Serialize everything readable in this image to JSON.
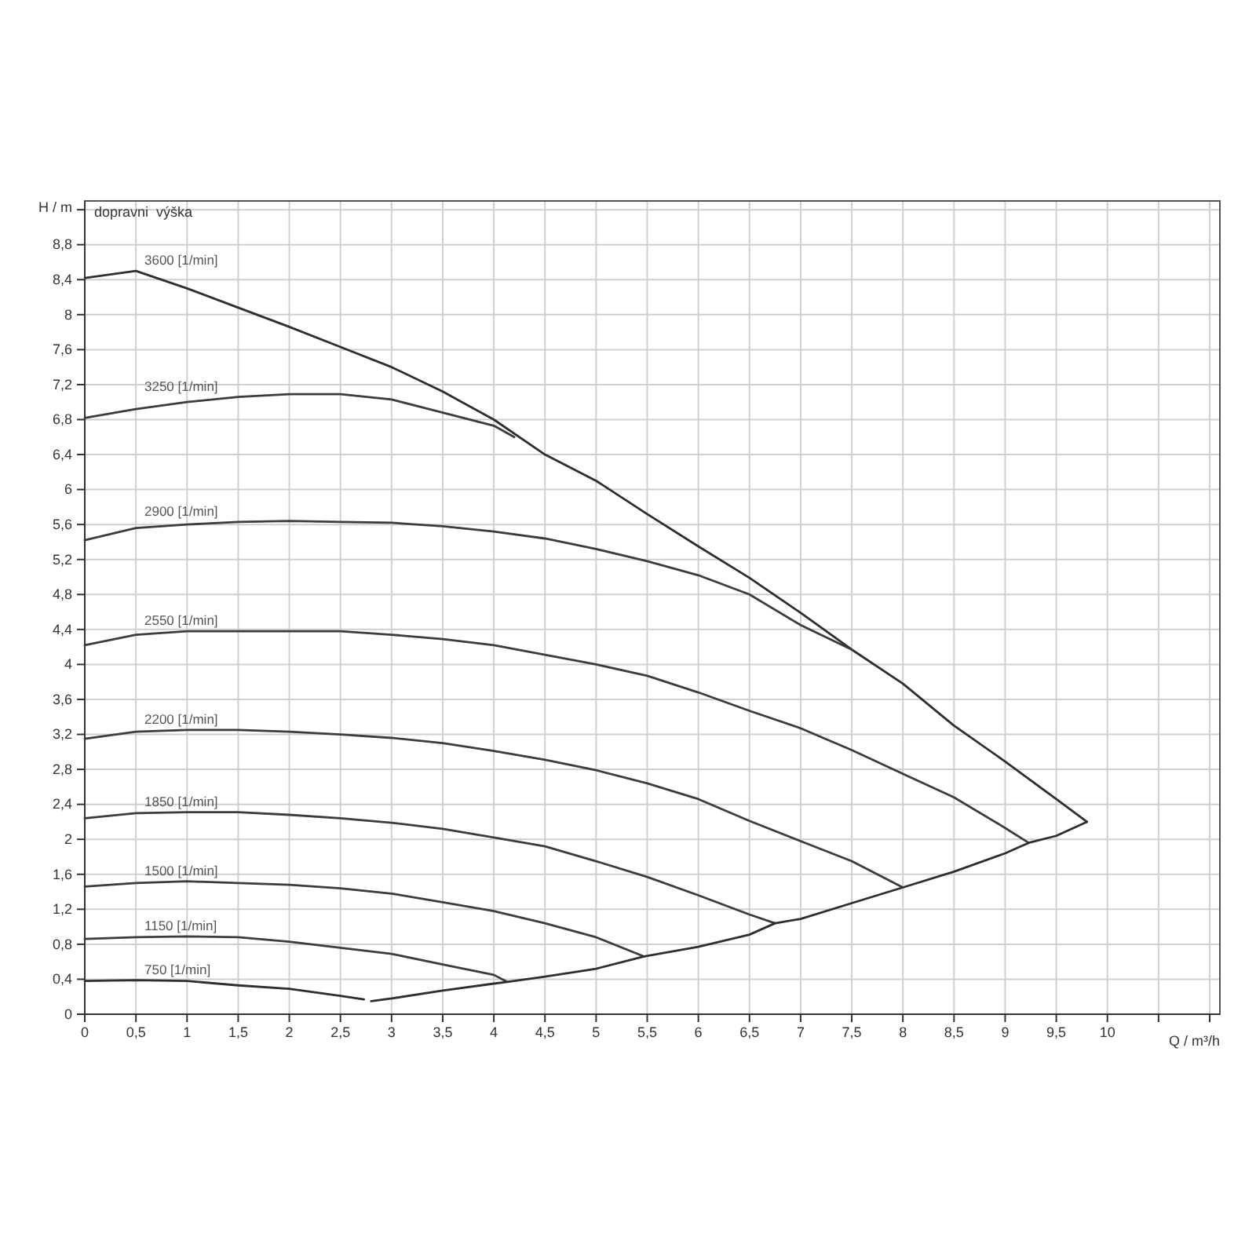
{
  "chart_data": {
    "type": "line",
    "xlabel": "Q / m³/h",
    "ylabel": "H / m",
    "annotations": [
      "dopravni  výška"
    ],
    "xlim": [
      0,
      11.1
    ],
    "ylim": [
      0,
      9.3
    ],
    "grid": true,
    "legend": false,
    "marker": "none",
    "line_style": "solid",
    "xticks": [
      0,
      {
        "value": 0.5,
        "label": "0,5"
      },
      1,
      {
        "value": 1.5,
        "label": "1,5"
      },
      2,
      {
        "value": 2.5,
        "label": "2,5"
      },
      3,
      {
        "value": 3.5,
        "label": "3,5"
      },
      4,
      {
        "value": 4.5,
        "label": "4,5"
      },
      5,
      {
        "value": 5.5,
        "label": "5,5"
      },
      6,
      {
        "value": 6.5,
        "label": "6,5"
      },
      7,
      {
        "value": 7.5,
        "label": "7,5"
      },
      8,
      {
        "value": 8.5,
        "label": "8,5"
      },
      9,
      {
        "value": 9.5,
        "label": "9,5"
      },
      10,
      {
        "value": 10.5,
        "label": null
      },
      {
        "value": 11,
        "label": null
      }
    ],
    "yticks": [
      0,
      {
        "value": 0.4,
        "label": "0,4"
      },
      {
        "value": 0.8,
        "label": "0,8"
      },
      {
        "value": 1.2,
        "label": "1,2"
      },
      {
        "value": 1.6,
        "label": "1,6"
      },
      2,
      {
        "value": 2.4,
        "label": "2,4"
      },
      {
        "value": 2.8,
        "label": "2,8"
      },
      {
        "value": 3.2,
        "label": "3,2"
      },
      {
        "value": 3.6,
        "label": "3,6"
      },
      4,
      {
        "value": 4.4,
        "label": "4,4"
      },
      {
        "value": 4.8,
        "label": "4,8"
      },
      {
        "value": 5.2,
        "label": "5,2"
      },
      {
        "value": 5.6,
        "label": "5,6"
      },
      6,
      {
        "value": 6.4,
        "label": "6,4"
      },
      {
        "value": 6.8,
        "label": "6,8"
      },
      {
        "value": 7.2,
        "label": "7,2"
      },
      {
        "value": 7.6,
        "label": "7,6"
      },
      8,
      {
        "value": 8.4,
        "label": "8,4"
      },
      {
        "value": 8.8,
        "label": "8,8"
      },
      {
        "value": 9.2,
        "label": null
      }
    ],
    "series": [
      {
        "name": "3600 [1/min]",
        "color": "#2e2e2e",
        "x": [
          0,
          0.5,
          1,
          1.5,
          2,
          2.5,
          3,
          3.5,
          4,
          4.5,
          5,
          5.5,
          6,
          6.5,
          7,
          7.5,
          8,
          8.5,
          9,
          9.5,
          9.8
        ],
        "values": [
          8.42,
          8.5,
          8.3,
          8.08,
          7.86,
          7.63,
          7.4,
          7.12,
          6.8,
          6.4,
          6.1,
          5.72,
          5.35,
          4.99,
          4.59,
          4.17,
          3.78,
          3.3,
          2.89,
          2.46,
          2.2
        ]
      },
      {
        "name": "3250 [1/min]",
        "color": "#3c3c3c",
        "x": [
          0,
          0.5,
          1,
          1.5,
          2,
          2.5,
          3,
          3.5,
          4,
          4.2
        ],
        "values": [
          6.82,
          6.92,
          7.0,
          7.06,
          7.09,
          7.09,
          7.03,
          6.88,
          6.73,
          6.6
        ]
      },
      {
        "name": "2900 [1/min]",
        "color": "#3c3c3c",
        "x": [
          0,
          0.5,
          1,
          1.5,
          2,
          2.5,
          3,
          3.5,
          4,
          4.5,
          5,
          5.5,
          6,
          6.5,
          7,
          7.5
        ],
        "values": [
          5.42,
          5.56,
          5.6,
          5.63,
          5.64,
          5.63,
          5.62,
          5.58,
          5.52,
          5.44,
          5.32,
          5.18,
          5.02,
          4.8,
          4.45,
          4.17
        ]
      },
      {
        "name": "2550 [1/min]",
        "color": "#3c3c3c",
        "x": [
          0,
          0.5,
          1,
          1.5,
          2,
          2.5,
          3,
          3.5,
          4,
          4.5,
          5,
          5.5,
          6,
          6.5,
          7,
          7.5,
          8,
          8.5,
          9,
          9.23
        ],
        "values": [
          4.22,
          4.34,
          4.38,
          4.38,
          4.38,
          4.38,
          4.34,
          4.29,
          4.22,
          4.11,
          4.0,
          3.87,
          3.68,
          3.47,
          3.27,
          3.02,
          2.75,
          2.48,
          2.13,
          1.96
        ]
      },
      {
        "name": "2200 [1/min]",
        "color": "#3c3c3c",
        "x": [
          0,
          0.5,
          1,
          1.5,
          2,
          2.5,
          3,
          3.5,
          4,
          4.5,
          5,
          5.5,
          6,
          6.5,
          7,
          7.5,
          8
        ],
        "values": [
          3.15,
          3.23,
          3.25,
          3.25,
          3.23,
          3.2,
          3.16,
          3.1,
          3.01,
          2.91,
          2.79,
          2.64,
          2.46,
          2.21,
          1.98,
          1.75,
          1.45
        ]
      },
      {
        "name": "1850 [1/min]",
        "color": "#3c3c3c",
        "x": [
          0,
          0.5,
          1,
          1.5,
          2,
          2.5,
          3,
          3.5,
          4,
          4.5,
          5,
          5.5,
          6,
          6.5,
          6.75
        ],
        "values": [
          2.24,
          2.3,
          2.31,
          2.31,
          2.28,
          2.24,
          2.19,
          2.12,
          2.02,
          1.92,
          1.75,
          1.57,
          1.36,
          1.14,
          1.04
        ]
      },
      {
        "name": "1500 [1/min]",
        "color": "#3c3c3c",
        "x": [
          0,
          0.5,
          1,
          1.5,
          2,
          2.5,
          3,
          3.5,
          4,
          4.5,
          5,
          5.47
        ],
        "values": [
          1.46,
          1.5,
          1.52,
          1.5,
          1.48,
          1.44,
          1.38,
          1.28,
          1.18,
          1.04,
          0.88,
          0.66
        ]
      },
      {
        "name": "1150 [1/min]",
        "color": "#3c3c3c",
        "x": [
          0,
          0.5,
          1,
          1.5,
          2,
          2.5,
          3,
          3.5,
          4,
          4.13
        ],
        "values": [
          0.86,
          0.88,
          0.89,
          0.88,
          0.83,
          0.76,
          0.69,
          0.57,
          0.45,
          0.37
        ]
      },
      {
        "name": "750 [1/min]",
        "color": "#2e2e2e",
        "x": [
          0,
          0.5,
          1,
          1.5,
          2,
          2.5,
          2.73
        ],
        "values": [
          0.38,
          0.39,
          0.38,
          0.33,
          0.29,
          0.21,
          0.17
        ]
      },
      {
        "color": "#2e2e2e",
        "x": [
          2.8,
          3,
          3.5,
          4,
          4.13,
          4.5,
          5,
          5.47,
          6,
          6.5,
          6.75,
          7,
          7.5,
          8,
          8.5,
          9,
          9.23,
          9.5,
          9.8
        ],
        "values": [
          0.15,
          0.18,
          0.27,
          0.35,
          0.37,
          0.43,
          0.52,
          0.66,
          0.77,
          0.91,
          1.04,
          1.09,
          1.27,
          1.45,
          1.63,
          1.84,
          1.96,
          2.04,
          2.2
        ]
      }
    ]
  }
}
